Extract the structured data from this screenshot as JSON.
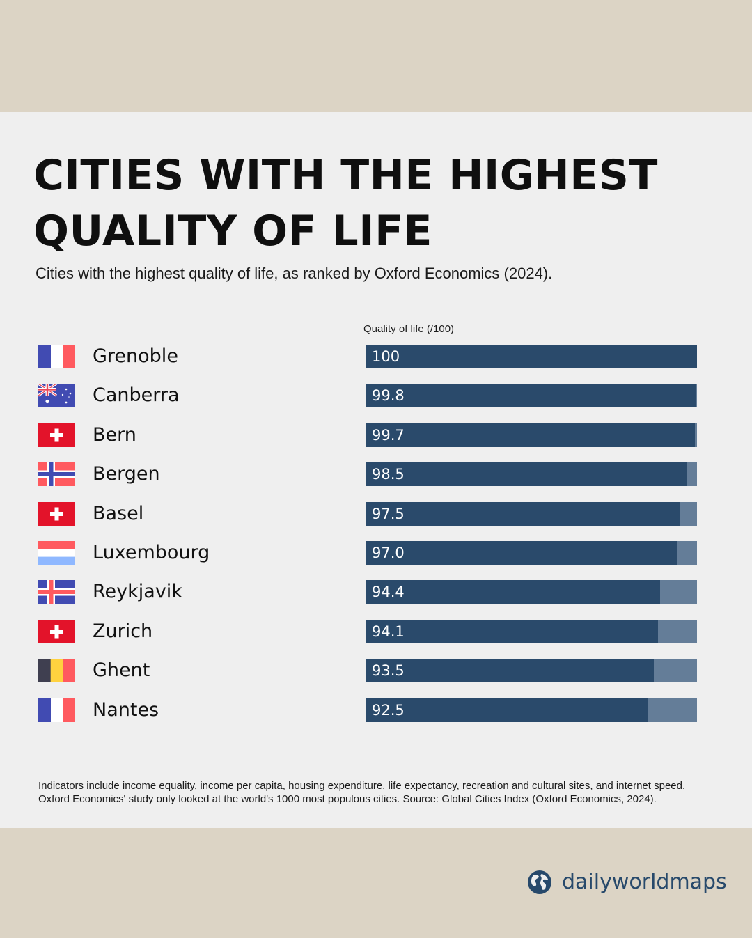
{
  "header": {
    "title_line1": "CITIES WITH THE HIGHEST",
    "title_line2": "QUALITY OF LIFE",
    "subtitle": "Cities with the highest quality of life, as ranked by Oxford Economics (2024)."
  },
  "colors": {
    "bar_fill": "#2a4a6b",
    "bar_remainder": "#647d98",
    "panel_background": "#efefef",
    "frame_background": "#dcd4c5",
    "brand": "#27496b"
  },
  "chart_data": {
    "type": "bar",
    "orientation": "horizontal",
    "title": "CITIES WITH THE HIGHEST QUALITY OF LIFE",
    "subtitle": "Cities with the highest quality of life, as ranked by Oxford Economics (2024).",
    "xlabel": "Quality of life (/100)",
    "ylabel": "",
    "xlim": [
      0,
      100
    ],
    "grid": false,
    "categories": [
      "Grenoble",
      "Canberra",
      "Bern",
      "Bergen",
      "Basel",
      "Luxembourg",
      "Reykjavik",
      "Zurich",
      "Ghent",
      "Nantes"
    ],
    "values": [
      100,
      99.8,
      99.7,
      98.5,
      97.5,
      97.0,
      94.4,
      94.1,
      93.5,
      92.5
    ],
    "value_labels": [
      "100",
      "99.8",
      "99.7",
      "98.5",
      "97.5",
      "97.0",
      "94.4",
      "94.1",
      "93.5",
      "92.5"
    ],
    "flags": [
      "france-flag-icon",
      "australia-flag-icon",
      "switzerland-flag-icon",
      "norway-flag-icon",
      "switzerland-flag-icon",
      "luxembourg-flag-icon",
      "iceland-flag-icon",
      "switzerland-flag-icon",
      "belgium-flag-icon",
      "france-flag-icon"
    ]
  },
  "footnote": {
    "line1": "Indicators include income equality, income per capita, housing expenditure, life expectancy, recreation and cultural sites, and internet speed.",
    "line2": "Oxford Economics' study only looked at the world's 1000 most populous cities. Source: Global Cities Index (Oxford Economics, 2024)."
  },
  "brand": {
    "name": "dailyworldmaps",
    "icon": "globe-icon"
  }
}
